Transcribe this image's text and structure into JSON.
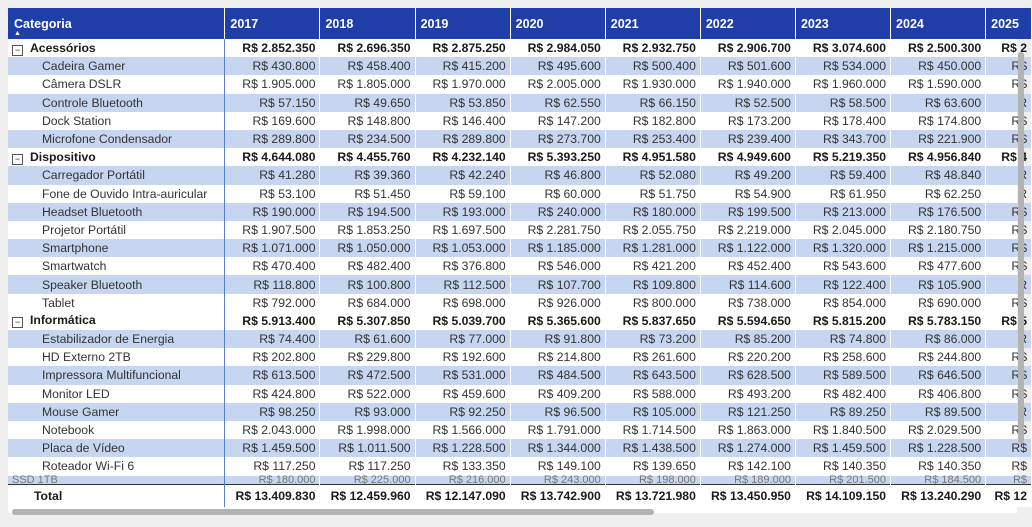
{
  "header": {
    "category_label": "Categoria",
    "years": [
      "2017",
      "2018",
      "2019",
      "2020",
      "2021",
      "2022",
      "2023",
      "2024",
      "2025"
    ]
  },
  "rows": [
    {
      "type": "group",
      "label": "Acessórios",
      "values": [
        "R$ 2.852.350",
        "R$ 2.696.350",
        "R$ 2.875.250",
        "R$ 2.984.050",
        "R$ 2.932.750",
        "R$ 2.906.700",
        "R$ 3.074.600",
        "R$ 2.500.300",
        "R$ 2"
      ]
    },
    {
      "type": "child",
      "label": "Cadeira Gamer",
      "values": [
        "R$ 430.800",
        "R$ 458.400",
        "R$ 415.200",
        "R$ 495.600",
        "R$ 500.400",
        "R$ 501.600",
        "R$ 534.000",
        "R$ 450.000",
        "R$"
      ]
    },
    {
      "type": "child",
      "label": "Câmera DSLR",
      "values": [
        "R$ 1.905.000",
        "R$ 1.805.000",
        "R$ 1.970.000",
        "R$ 2.005.000",
        "R$ 1.930.000",
        "R$ 1.940.000",
        "R$ 1.960.000",
        "R$ 1.590.000",
        "R$"
      ]
    },
    {
      "type": "child",
      "label": "Controle Bluetooth",
      "values": [
        "R$ 57.150",
        "R$ 49.650",
        "R$ 53.850",
        "R$ 62.550",
        "R$ 66.150",
        "R$ 52.500",
        "R$ 58.500",
        "R$ 63.600",
        "R"
      ]
    },
    {
      "type": "child",
      "label": "Dock Station",
      "values": [
        "R$ 169.600",
        "R$ 148.800",
        "R$ 146.400",
        "R$ 147.200",
        "R$ 182.800",
        "R$ 173.200",
        "R$ 178.400",
        "R$ 174.800",
        "R$"
      ]
    },
    {
      "type": "child",
      "label": "Microfone Condensador",
      "values": [
        "R$ 289.800",
        "R$ 234.500",
        "R$ 289.800",
        "R$ 273.700",
        "R$ 253.400",
        "R$ 239.400",
        "R$ 343.700",
        "R$ 221.900",
        "R$"
      ]
    },
    {
      "type": "group",
      "label": "Dispositivo",
      "values": [
        "R$ 4.644.080",
        "R$ 4.455.760",
        "R$ 4.232.140",
        "R$ 5.393.250",
        "R$ 4.951.580",
        "R$ 4.949.600",
        "R$ 5.219.350",
        "R$ 4.956.840",
        "R$ 4"
      ]
    },
    {
      "type": "child",
      "label": "Carregador Portátil",
      "values": [
        "R$ 41.280",
        "R$ 39.360",
        "R$ 42.240",
        "R$ 46.800",
        "R$ 52.080",
        "R$ 49.200",
        "R$ 59.400",
        "R$ 48.840",
        "R"
      ]
    },
    {
      "type": "child",
      "label": "Fone de Ouvido Intra-auricular",
      "values": [
        "R$ 53.100",
        "R$ 51.450",
        "R$ 59.100",
        "R$ 60.000",
        "R$ 51.750",
        "R$ 54.900",
        "R$ 61.950",
        "R$ 62.250",
        "R"
      ]
    },
    {
      "type": "child",
      "label": "Headset Bluetooth",
      "values": [
        "R$ 190.000",
        "R$ 194.500",
        "R$ 193.000",
        "R$ 240.000",
        "R$ 180.000",
        "R$ 199.500",
        "R$ 213.000",
        "R$ 176.500",
        "R$"
      ]
    },
    {
      "type": "child",
      "label": "Projetor Portátil",
      "values": [
        "R$ 1.907.500",
        "R$ 1.853.250",
        "R$ 1.697.500",
        "R$ 2.281.750",
        "R$ 2.055.750",
        "R$ 2.219.000",
        "R$ 2.045.000",
        "R$ 2.180.750",
        "R$"
      ]
    },
    {
      "type": "child",
      "label": "Smartphone",
      "values": [
        "R$ 1.071.000",
        "R$ 1.050.000",
        "R$ 1.053.000",
        "R$ 1.185.000",
        "R$ 1.281.000",
        "R$ 1.122.000",
        "R$ 1.320.000",
        "R$ 1.215.000",
        "R$"
      ]
    },
    {
      "type": "child",
      "label": "Smartwatch",
      "values": [
        "R$ 470.400",
        "R$ 482.400",
        "R$ 376.800",
        "R$ 546.000",
        "R$ 421.200",
        "R$ 452.400",
        "R$ 543.600",
        "R$ 477.600",
        "R$"
      ]
    },
    {
      "type": "child",
      "label": "Speaker Bluetooth",
      "values": [
        "R$ 118.800",
        "R$ 100.800",
        "R$ 112.500",
        "R$ 107.700",
        "R$ 109.800",
        "R$ 114.600",
        "R$ 122.400",
        "R$ 105.900",
        "R"
      ]
    },
    {
      "type": "child",
      "label": "Tablet",
      "values": [
        "R$ 792.000",
        "R$ 684.000",
        "R$ 698.000",
        "R$ 926.000",
        "R$ 800.000",
        "R$ 738.000",
        "R$ 854.000",
        "R$ 690.000",
        "R$"
      ]
    },
    {
      "type": "group",
      "label": "Informática",
      "values": [
        "R$ 5.913.400",
        "R$ 5.307.850",
        "R$ 5.039.700",
        "R$ 5.365.600",
        "R$ 5.837.650",
        "R$ 5.594.650",
        "R$ 5.815.200",
        "R$ 5.783.150",
        "R$ 5"
      ]
    },
    {
      "type": "child",
      "label": "Estabilizador de Energia",
      "values": [
        "R$ 74.400",
        "R$ 61.600",
        "R$ 77.000",
        "R$ 91.800",
        "R$ 73.200",
        "R$ 85.200",
        "R$ 74.800",
        "R$ 86.000",
        "R"
      ]
    },
    {
      "type": "child",
      "label": "HD Externo 2TB",
      "values": [
        "R$ 202.800",
        "R$ 229.800",
        "R$ 192.600",
        "R$ 214.800",
        "R$ 261.600",
        "R$ 220.200",
        "R$ 258.600",
        "R$ 244.800",
        "R$"
      ]
    },
    {
      "type": "child",
      "label": "Impressora Multifuncional",
      "values": [
        "R$ 613.500",
        "R$ 472.500",
        "R$ 531.000",
        "R$ 484.500",
        "R$ 643.500",
        "R$ 628.500",
        "R$ 589.500",
        "R$ 646.500",
        "R$"
      ]
    },
    {
      "type": "child",
      "label": "Monitor LED",
      "values": [
        "R$ 424.800",
        "R$ 522.000",
        "R$ 459.600",
        "R$ 409.200",
        "R$ 588.000",
        "R$ 493.200",
        "R$ 482.400",
        "R$ 406.800",
        "R$"
      ]
    },
    {
      "type": "child",
      "label": "Mouse Gamer",
      "values": [
        "R$ 98.250",
        "R$ 93.000",
        "R$ 92.250",
        "R$ 96.500",
        "R$ 105.000",
        "R$ 121.250",
        "R$ 89.250",
        "R$ 89.500",
        "R"
      ]
    },
    {
      "type": "child",
      "label": "Notebook",
      "values": [
        "R$ 2.043.000",
        "R$ 1.998.000",
        "R$ 1.566.000",
        "R$ 1.791.000",
        "R$ 1.714.500",
        "R$ 1.863.000",
        "R$ 1.840.500",
        "R$ 2.029.500",
        "R$"
      ]
    },
    {
      "type": "child",
      "label": "Placa de Vídeo",
      "values": [
        "R$ 1.459.500",
        "R$ 1.011.500",
        "R$ 1.228.500",
        "R$ 1.344.000",
        "R$ 1.438.500",
        "R$ 1.274.000",
        "R$ 1.459.500",
        "R$ 1.228.500",
        "R$"
      ]
    },
    {
      "type": "child",
      "label": "Roteador Wi-Fi 6",
      "values": [
        "R$ 117.250",
        "R$ 117.250",
        "R$ 133.350",
        "R$ 149.100",
        "R$ 139.650",
        "R$ 142.100",
        "R$ 140.350",
        "R$ 140.350",
        "R$"
      ]
    },
    {
      "type": "partial",
      "label": "SSD 1TB",
      "values": [
        "R$ 180.000",
        "R$ 225.000",
        "R$ 216.000",
        "R$ 243.000",
        "R$ 198.000",
        "R$ 189.000",
        "R$ 201.500",
        "R$ 184.500",
        "R$"
      ]
    }
  ],
  "total": {
    "label": "Total",
    "values": [
      "R$ 13.409.830",
      "R$ 12.459.960",
      "R$ 12.147.090",
      "R$ 13.742.900",
      "R$ 13.721.980",
      "R$ 13.450.950",
      "R$ 14.109.150",
      "R$ 13.240.290",
      "R$ 12"
    ]
  },
  "icons": {
    "expand": "minus-box-icon",
    "sort": "sort-ascending-icon"
  },
  "colors": {
    "header": "#1f3ea8",
    "band": "#c6d6f0",
    "divider": "#5b7fc6"
  }
}
